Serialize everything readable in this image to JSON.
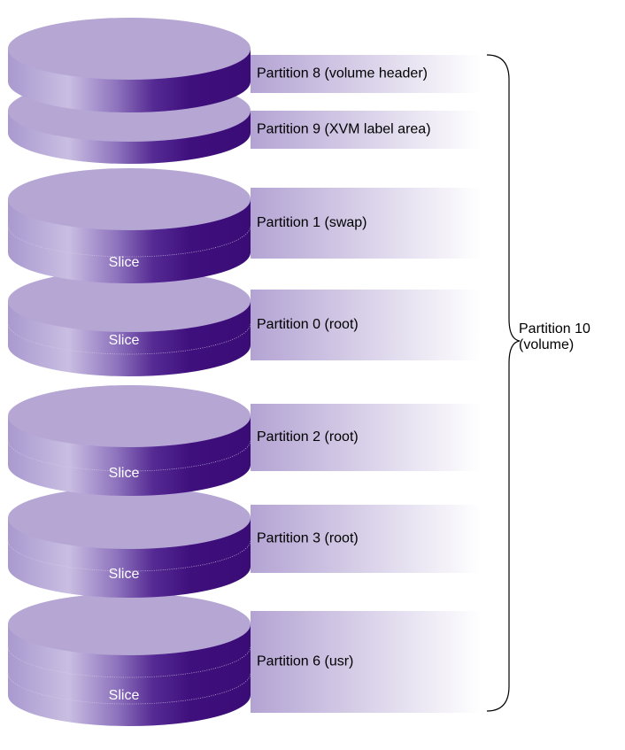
{
  "partitions": [
    {
      "label": "Partition 8 (volume header)"
    },
    {
      "label": "Partition 9 (XVM label area)"
    },
    {
      "label": "Partition 1 (swap)",
      "slice": "Slice"
    },
    {
      "label": "Partition 0 (root)",
      "slice": "Slice"
    },
    {
      "label": "Partition 2 (root)",
      "slice": "Slice"
    },
    {
      "label": "Partition 3 (root)",
      "slice": "Slice"
    },
    {
      "label": "Partition 6 (usr)",
      "slice": "Slice"
    }
  ],
  "brace_label": [
    "Partition 10",
    "(volume)"
  ]
}
